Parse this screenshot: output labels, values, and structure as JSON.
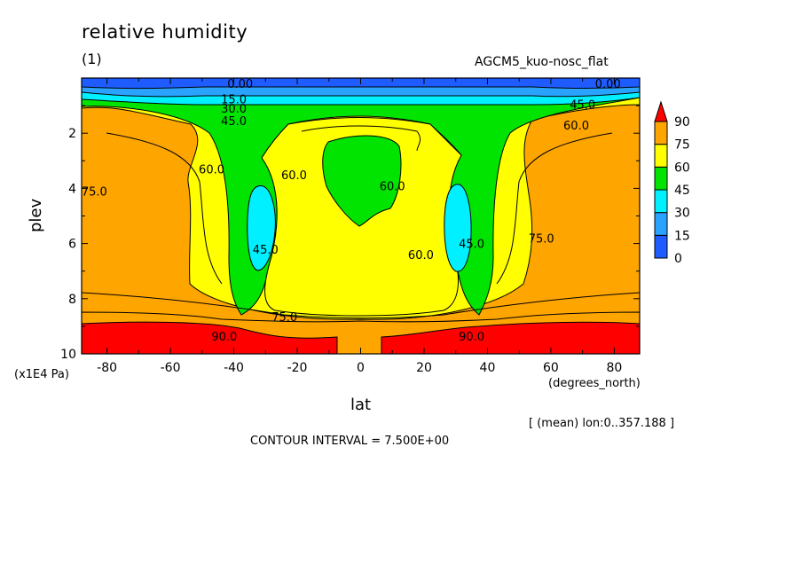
{
  "header": {
    "title": "relative humidity",
    "subtitle": "(1)",
    "model": "AGCM5_kuo-nosc_flat"
  },
  "footer": {
    "mean_note": "[ (mean) lon:0..357.188 ]",
    "contour_interval": "CONTOUR INTERVAL = 7.500E+00"
  },
  "chart_data": {
    "type": "heatmap",
    "title": "relative humidity",
    "xlabel": "lat",
    "ylabel": "plev",
    "x_units": "(degrees_north)",
    "y_units": "(x1E4 Pa)",
    "xlim": [
      -88,
      88
    ],
    "ylim": [
      10,
      0
    ],
    "x_ticks": [
      -80,
      -60,
      -40,
      -20,
      0,
      20,
      40,
      60,
      80
    ],
    "x_tick_labels": [
      "-80",
      "-60",
      "-40",
      "-20",
      "0",
      "20",
      "40",
      "60",
      "80"
    ],
    "y_ticks": [
      2,
      4,
      6,
      8,
      10
    ],
    "y_tick_labels": [
      "2",
      "4",
      "6",
      "8",
      "10"
    ],
    "colorbar": {
      "levels": [
        0,
        15,
        30,
        45,
        60,
        75,
        90
      ],
      "labels": [
        "0",
        "15",
        "30",
        "45",
        "60",
        "75",
        "90"
      ],
      "colors": [
        "#1f5cff",
        "#29a3ff",
        "#00f0ff",
        "#00e400",
        "#ffff00",
        "#ffa500",
        "#ff0000"
      ]
    },
    "contour_labels": [
      {
        "text": "0.00",
        "lat": -38,
        "plev": 0.2
      },
      {
        "text": "15.0",
        "lat": -40,
        "plev": 0.75
      },
      {
        "text": "30.0",
        "lat": -40,
        "plev": 1.1
      },
      {
        "text": "45.0",
        "lat": -40,
        "plev": 1.55
      },
      {
        "text": "0.00",
        "lat": 78,
        "plev": 0.2
      },
      {
        "text": "45.0",
        "lat": 70,
        "plev": 0.95
      },
      {
        "text": "60.0",
        "lat": 68,
        "plev": 1.7
      },
      {
        "text": "60.0",
        "lat": -47,
        "plev": 3.3
      },
      {
        "text": "60.0",
        "lat": -21,
        "plev": 3.5
      },
      {
        "text": "60.0",
        "lat": 10,
        "plev": 3.9
      },
      {
        "text": "60.0",
        "lat": 19,
        "plev": 6.4
      },
      {
        "text": "75.0",
        "lat": -84,
        "plev": 4.1
      },
      {
        "text": "75.0",
        "lat": 57,
        "plev": 5.8
      },
      {
        "text": "45.0",
        "lat": -30,
        "plev": 6.2
      },
      {
        "text": "45.0",
        "lat": 35,
        "plev": 6.0
      },
      {
        "text": "75.0",
        "lat": -24,
        "plev": 8.65
      },
      {
        "text": "90.0",
        "lat": -43,
        "plev": 9.35
      },
      {
        "text": "90.0",
        "lat": 35,
        "plev": 9.35
      }
    ]
  }
}
